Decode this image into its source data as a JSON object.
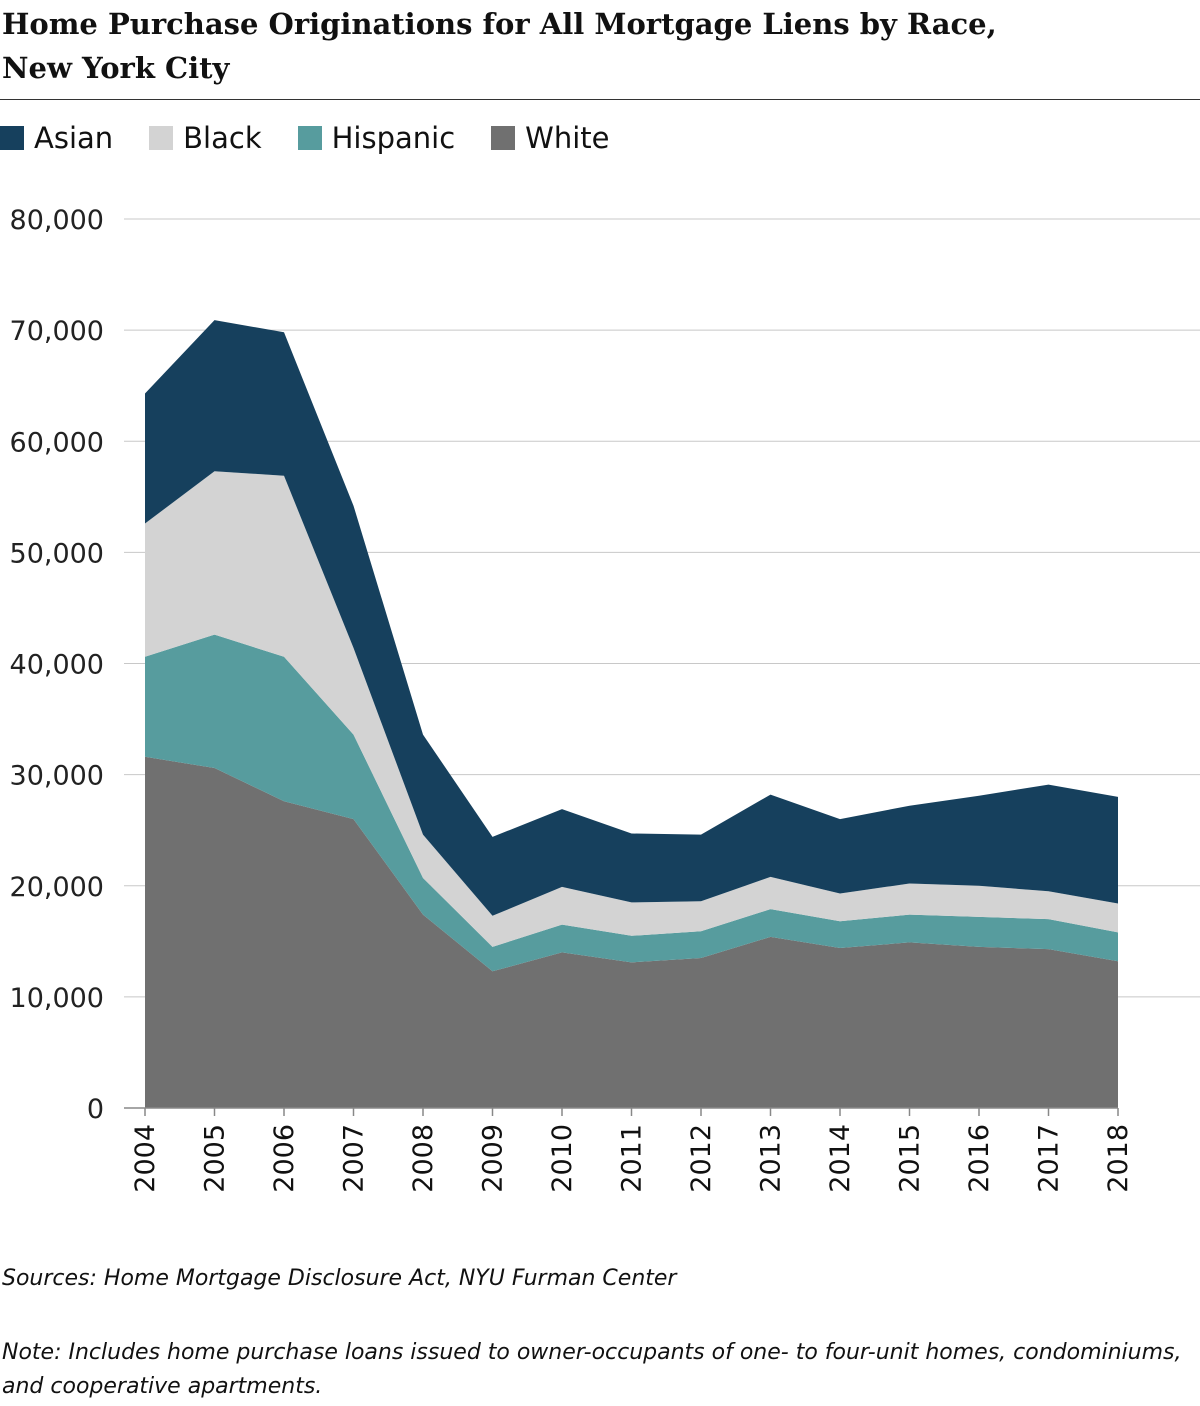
{
  "chart_data": {
    "type": "area",
    "stacked": true,
    "title_lines": [
      "Home Purchase Originations for All Mortgage Liens by Race,",
      "New York City"
    ],
    "xlabel": "",
    "ylabel": "",
    "ylim": [
      0,
      80000
    ],
    "y_ticks": [
      0,
      10000,
      20000,
      30000,
      40000,
      50000,
      60000,
      70000,
      80000
    ],
    "y_tick_labels": [
      "0",
      "10,000",
      "20,000",
      "30,000",
      "40,000",
      "50,000",
      "60,000",
      "70,000",
      "80,000"
    ],
    "x": [
      "2004",
      "2005",
      "2006",
      "2007",
      "2008",
      "2009",
      "2010",
      "2011",
      "2012",
      "2013",
      "2014",
      "2015",
      "2016",
      "2017",
      "2018"
    ],
    "grid": true,
    "legend_position": "top-left",
    "series": [
      {
        "name": "White",
        "color": "#707070",
        "values": [
          31600,
          30600,
          27600,
          26000,
          17400,
          12300,
          14000,
          13100,
          13500,
          15400,
          14400,
          14900,
          14500,
          14300,
          13200
        ]
      },
      {
        "name": "Hispanic",
        "color": "#579c9e",
        "values": [
          9000,
          12000,
          13000,
          7600,
          3300,
          2200,
          2500,
          2400,
          2400,
          2500,
          2400,
          2500,
          2700,
          2700,
          2600
        ]
      },
      {
        "name": "Black",
        "color": "#d3d3d3",
        "values": [
          12000,
          14700,
          16300,
          7800,
          3900,
          2800,
          3400,
          3000,
          2700,
          2900,
          2500,
          2800,
          2800,
          2500,
          2600
        ]
      },
      {
        "name": "Asian",
        "color": "#16405d",
        "values": [
          11700,
          13600,
          12900,
          12800,
          9000,
          7100,
          7000,
          6200,
          6000,
          7400,
          6700,
          7000,
          8100,
          9600,
          9600
        ]
      }
    ],
    "legend_order": [
      "Asian",
      "Black",
      "Hispanic",
      "White"
    ]
  },
  "source": "Sources: Home Mortgage Disclosure Act, NYU Furman Center",
  "note": "Note: Includes home purchase loans issued to owner-occupants of one- to four-unit homes, condominiums, and cooperative apartments."
}
